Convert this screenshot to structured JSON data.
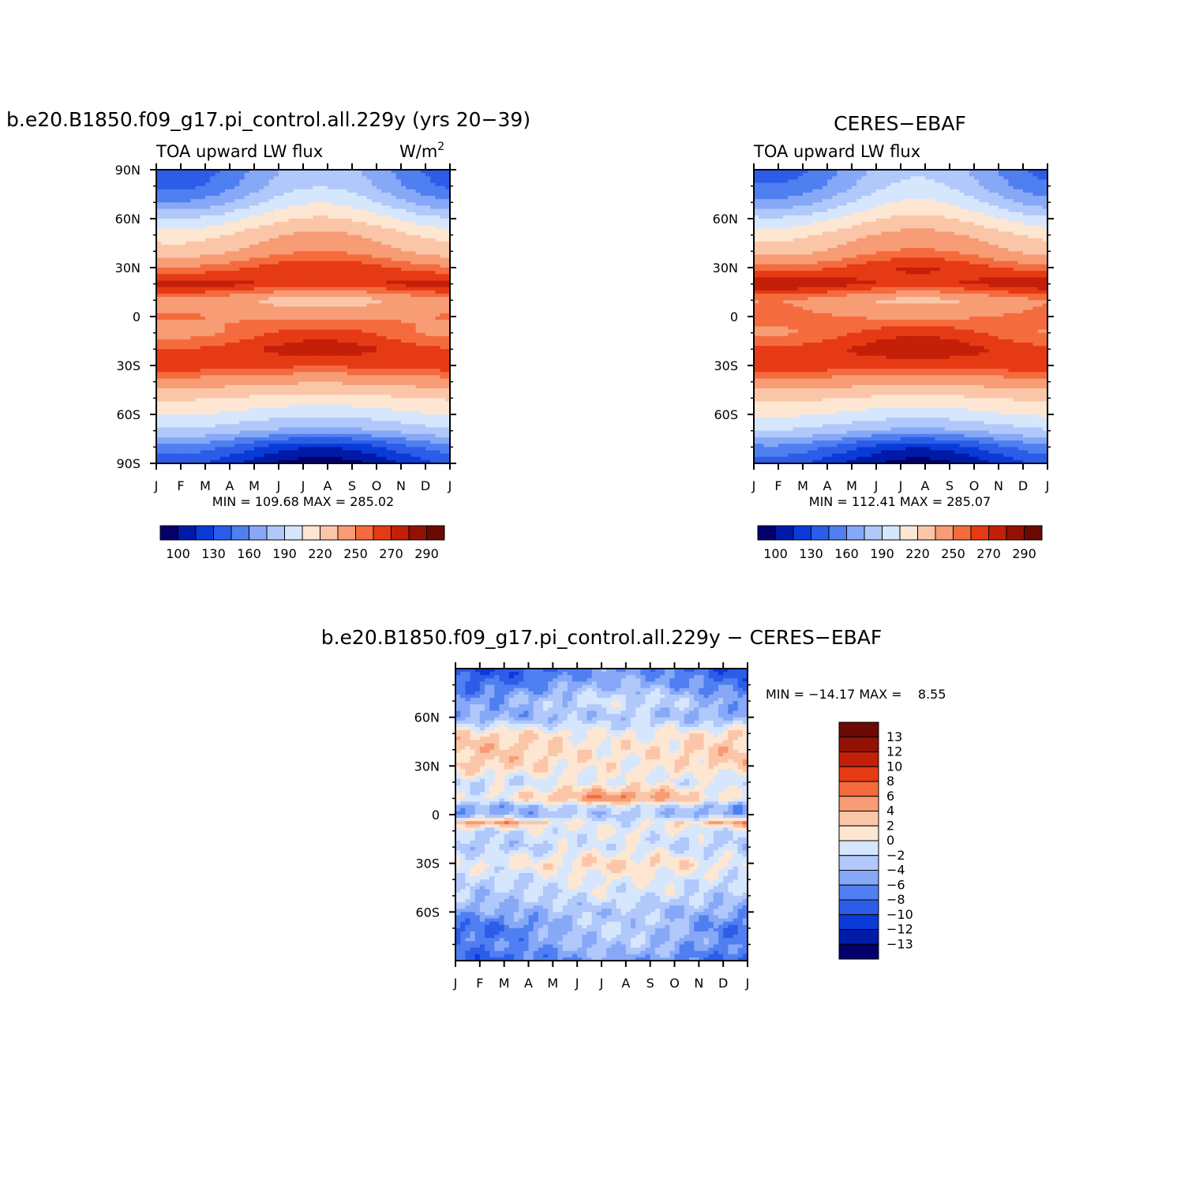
{
  "panels": [
    {
      "id": "model",
      "title": "b.e20.B1850.f09_g17.pi_control.all.229y (yrs 20−39)",
      "left_label": "TOA upward LW flux",
      "right_label": "W/m",
      "right_label_sup": "2",
      "min_max": "MIN = 109.68 MAX = 285.02",
      "lat_ticks": [
        "90N",
        "60N",
        "30N",
        "0",
        "30S",
        "60S",
        "90S"
      ],
      "month_ticks": [
        "J",
        "F",
        "M",
        "A",
        "M",
        "J",
        "J",
        "A",
        "S",
        "O",
        "N",
        "D",
        "J"
      ],
      "colorbar_labels": [
        "100",
        "130",
        "160",
        "190",
        "220",
        "250",
        "270",
        "290"
      ]
    },
    {
      "id": "obs",
      "title": "CERES−EBAF",
      "left_label": "TOA upward LW flux",
      "min_max": "MIN = 112.41 MAX = 285.07",
      "lat_ticks": [
        "60N",
        "30N",
        "0",
        "30S",
        "60S"
      ],
      "month_ticks": [
        "J",
        "F",
        "M",
        "A",
        "M",
        "J",
        "J",
        "A",
        "S",
        "O",
        "N",
        "D",
        "J"
      ],
      "colorbar_labels": [
        "100",
        "130",
        "160",
        "190",
        "220",
        "250",
        "270",
        "290"
      ]
    },
    {
      "id": "diff",
      "title": "b.e20.B1850.f09_g17.pi_control.all.229y − CERES−EBAF",
      "min_max": "MIN = −14.17 MAX =    8.55",
      "lat_ticks": [
        "60N",
        "30N",
        "0",
        "30S",
        "60S"
      ],
      "month_ticks": [
        "J",
        "F",
        "M",
        "A",
        "M",
        "J",
        "J",
        "A",
        "S",
        "O",
        "N",
        "D",
        "J"
      ],
      "colorbar_labels": [
        "13",
        "12",
        "10",
        "8",
        "6",
        "4",
        "2",
        "0",
        "−2",
        "−4",
        "−6",
        "−8",
        "−10",
        "−12",
        "−13"
      ]
    }
  ],
  "chart_data": [
    {
      "type": "heatmap",
      "title": "b.e20.B1850.f09_g17.pi_control.all.229y (yrs 20−39)",
      "variable": "TOA upward LW flux",
      "units": "W/m2",
      "x": [
        "J",
        "F",
        "M",
        "A",
        "M",
        "J",
        "J",
        "A",
        "S",
        "O",
        "N",
        "D"
      ],
      "y_range": [
        -90,
        90
      ],
      "min": 109.68,
      "max": 285.02,
      "levels": [
        100,
        115,
        130,
        145,
        160,
        175,
        190,
        205,
        220,
        235,
        250,
        260,
        270,
        280,
        290
      ],
      "colors": [
        "#03006b",
        "#001ba8",
        "#0a3bd8",
        "#2c5de8",
        "#4f7ff0",
        "#86a8f7",
        "#b0c8fa",
        "#d6e6fc",
        "#fde6d2",
        "#fbc6a8",
        "#f79c74",
        "#f46b3e",
        "#e63a14",
        "#c41f09",
        "#921105",
        "#6a0a02"
      ],
      "anchor_lats": [
        -90,
        -80,
        -70,
        -60,
        -50,
        -40,
        -30,
        -20,
        -10,
        0,
        10,
        20,
        30,
        40,
        50,
        60,
        70,
        80,
        90
      ],
      "annual_mean": [
        112,
        135,
        178,
        200,
        218,
        240,
        265,
        268,
        255,
        248,
        236,
        272,
        260,
        238,
        226,
        206,
        182,
        165,
        158
      ],
      "seasonal_amplitude": [
        -22,
        -20,
        -9,
        -6,
        -4,
        -3,
        -3,
        8,
        10,
        -3,
        -10,
        -6,
        9,
        12,
        13,
        16,
        22,
        24,
        25
      ]
    },
    {
      "type": "heatmap",
      "title": "CERES−EBAF",
      "variable": "TOA upward LW flux",
      "x": [
        "J",
        "F",
        "M",
        "A",
        "M",
        "J",
        "J",
        "A",
        "S",
        "O",
        "N",
        "D"
      ],
      "y_range": [
        -90,
        90
      ],
      "min": 112.41,
      "max": 285.07,
      "levels": [
        100,
        115,
        130,
        145,
        160,
        175,
        190,
        205,
        220,
        235,
        250,
        260,
        270,
        280,
        290
      ],
      "colors": [
        "#03006b",
        "#001ba8",
        "#0a3bd8",
        "#2c5de8",
        "#4f7ff0",
        "#86a8f7",
        "#b0c8fa",
        "#d6e6fc",
        "#fde6d2",
        "#fbc6a8",
        "#f79c74",
        "#f46b3e",
        "#e63a14",
        "#c41f09",
        "#921105",
        "#6a0a02"
      ],
      "anchor_lats": [
        -90,
        -80,
        -70,
        -60,
        -50,
        -40,
        -30,
        -20,
        -10,
        0,
        10,
        20,
        30,
        40,
        50,
        60,
        70,
        80,
        90
      ],
      "annual_mean": [
        114,
        137,
        180,
        202,
        220,
        242,
        266,
        270,
        258,
        250,
        240,
        274,
        262,
        240,
        228,
        208,
        186,
        170,
        162
      ],
      "seasonal_amplitude": [
        -22,
        -20,
        -9,
        -6,
        -4,
        -3,
        -3,
        8,
        10,
        -3,
        -10,
        -6,
        9,
        12,
        13,
        16,
        22,
        24,
        25
      ]
    },
    {
      "type": "heatmap",
      "title": "b.e20.B1850.f09_g17.pi_control.all.229y − CERES−EBAF",
      "x": [
        "J",
        "F",
        "M",
        "A",
        "M",
        "J",
        "J",
        "A",
        "S",
        "O",
        "N",
        "D"
      ],
      "y_range": [
        -90,
        90
      ],
      "min": -14.17,
      "max": 8.55,
      "levels": [
        -13,
        -12,
        -10,
        -8,
        -6,
        -4,
        -2,
        0,
        2,
        4,
        6,
        8,
        10,
        12,
        13
      ],
      "colors": [
        "#03006b",
        "#001ba8",
        "#0a3bd8",
        "#2c5de8",
        "#4f7ff0",
        "#86a8f7",
        "#b0c8fa",
        "#d6e6fc",
        "#fde6d2",
        "#fbc6a8",
        "#f79c74",
        "#f46b3e",
        "#e63a14",
        "#c41f09",
        "#921105",
        "#6a0a02"
      ],
      "anchor_lats": [
        -90,
        -80,
        -70,
        -60,
        -50,
        -40,
        -30,
        -20,
        -10,
        -5,
        0,
        5,
        10,
        20,
        30,
        40,
        50,
        60,
        70,
        80,
        90
      ],
      "annual_mean": [
        -7,
        -5,
        -5,
        -4,
        -2,
        -1,
        1,
        -2,
        -1,
        2,
        -4,
        -3,
        3,
        -1,
        1.5,
        2,
        1,
        -4,
        -3,
        -6,
        -8
      ],
      "seasonal_amplitude": [
        2,
        2,
        3,
        1,
        1,
        1,
        1,
        1,
        1,
        -3,
        1,
        2,
        3,
        1,
        -1,
        -1,
        -1,
        1,
        2,
        2,
        2
      ]
    }
  ]
}
